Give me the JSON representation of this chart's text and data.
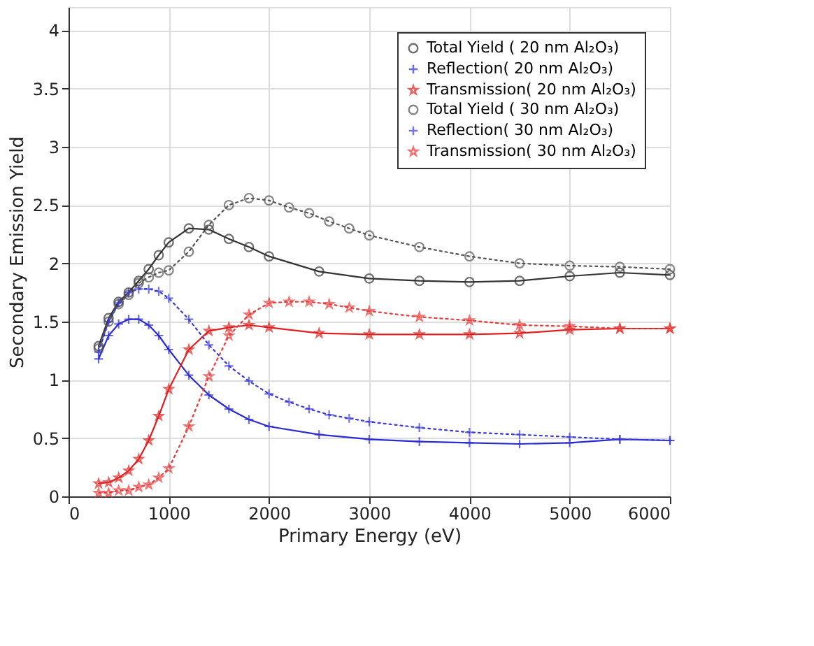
{
  "chart_data": {
    "type": "line",
    "xlabel": "Primary Energy (eV)",
    "ylabel": "Secondary Emission Yield",
    "xlim": [
      0,
      6000
    ],
    "xticks": [
      0,
      1000,
      2000,
      3000,
      4000,
      5000,
      6000
    ],
    "ylim": [
      0,
      4.2
    ],
    "yticks": [
      0,
      0.5,
      1,
      1.5,
      2,
      2.5,
      3,
      3.5,
      4
    ],
    "grid": true,
    "legend": "top right",
    "series": [
      {
        "name": "Total Yield ( 20 nm Al₂O₃)",
        "color": "#333333",
        "line_style": "solid",
        "marker": "circle",
        "x": [
          300,
          400,
          500,
          600,
          700,
          800,
          900,
          1000,
          1200,
          1400,
          1600,
          1800,
          2000,
          2500,
          3000,
          3500,
          4000,
          4500,
          5000,
          5500,
          6000
        ],
        "values": [
          1.29,
          1.53,
          1.67,
          1.75,
          1.85,
          1.95,
          2.07,
          2.18,
          2.3,
          2.29,
          2.21,
          2.14,
          2.06,
          1.93,
          1.87,
          1.85,
          1.84,
          1.85,
          1.89,
          1.92,
          1.9
        ]
      },
      {
        "name": "Reflection( 20 nm Al₂O₃)",
        "color": "#2b2bd0",
        "line_style": "solid",
        "marker": "cross",
        "x": [
          300,
          400,
          500,
          600,
          700,
          800,
          900,
          1000,
          1200,
          1400,
          1600,
          1800,
          2000,
          2500,
          3000,
          3500,
          4000,
          4500,
          5000,
          5500,
          6000
        ],
        "values": [
          1.18,
          1.38,
          1.48,
          1.52,
          1.52,
          1.47,
          1.38,
          1.26,
          1.04,
          0.87,
          0.75,
          0.66,
          0.6,
          0.53,
          0.49,
          0.47,
          0.46,
          0.45,
          0.46,
          0.49,
          0.48
        ]
      },
      {
        "name": "Transmission( 20 nm Al₂O₃)",
        "color": "#e02020",
        "line_style": "solid",
        "marker": "star",
        "x": [
          300,
          400,
          500,
          600,
          700,
          800,
          900,
          1000,
          1200,
          1400,
          1600,
          1800,
          2000,
          2500,
          3000,
          3500,
          4000,
          4500,
          5000,
          5500,
          6000
        ],
        "values": [
          0.11,
          0.12,
          0.16,
          0.22,
          0.32,
          0.48,
          0.69,
          0.92,
          1.26,
          1.42,
          1.45,
          1.47,
          1.45,
          1.4,
          1.39,
          1.39,
          1.39,
          1.4,
          1.43,
          1.44,
          1.44
        ]
      },
      {
        "name": "Total Yield ( 30 nm Al₂O₃)",
        "color": "#555555",
        "line_style": "dotted",
        "marker": "circle",
        "x": [
          300,
          400,
          500,
          600,
          700,
          800,
          900,
          1000,
          1200,
          1400,
          1600,
          1800,
          2000,
          2200,
          2400,
          2600,
          2800,
          3000,
          3500,
          4000,
          4500,
          5000,
          5500,
          6000
        ],
        "values": [
          1.27,
          1.5,
          1.65,
          1.73,
          1.83,
          1.88,
          1.92,
          1.94,
          2.1,
          2.33,
          2.5,
          2.56,
          2.54,
          2.48,
          2.43,
          2.36,
          2.3,
          2.24,
          2.14,
          2.06,
          2.0,
          1.98,
          1.97,
          1.95
        ]
      },
      {
        "name": "Reflection( 30 nm Al₂O₃)",
        "color": "#3a3ad8",
        "line_style": "dotted",
        "marker": "cross",
        "x": [
          300,
          400,
          500,
          600,
          700,
          800,
          900,
          1000,
          1200,
          1400,
          1600,
          1800,
          2000,
          2200,
          2400,
          2600,
          2800,
          3000,
          3500,
          4000,
          4500,
          5000,
          5500,
          6000
        ],
        "values": [
          1.24,
          1.5,
          1.66,
          1.75,
          1.78,
          1.78,
          1.76,
          1.7,
          1.52,
          1.3,
          1.12,
          0.99,
          0.88,
          0.81,
          0.75,
          0.7,
          0.67,
          0.64,
          0.59,
          0.55,
          0.53,
          0.51,
          0.49,
          0.48
        ]
      },
      {
        "name": "Transmission( 30 nm Al₂O₃)",
        "color": "#e83a3a",
        "line_style": "dotted",
        "marker": "star",
        "x": [
          300,
          400,
          500,
          600,
          700,
          800,
          900,
          1000,
          1200,
          1400,
          1600,
          1800,
          2000,
          2200,
          2400,
          2600,
          2800,
          3000,
          3500,
          4000,
          4500,
          5000,
          5500,
          6000
        ],
        "values": [
          0.03,
          0.03,
          0.05,
          0.05,
          0.08,
          0.1,
          0.16,
          0.24,
          0.6,
          1.03,
          1.38,
          1.56,
          1.66,
          1.67,
          1.67,
          1.65,
          1.62,
          1.59,
          1.54,
          1.51,
          1.47,
          1.46,
          1.44,
          1.44
        ]
      }
    ]
  }
}
